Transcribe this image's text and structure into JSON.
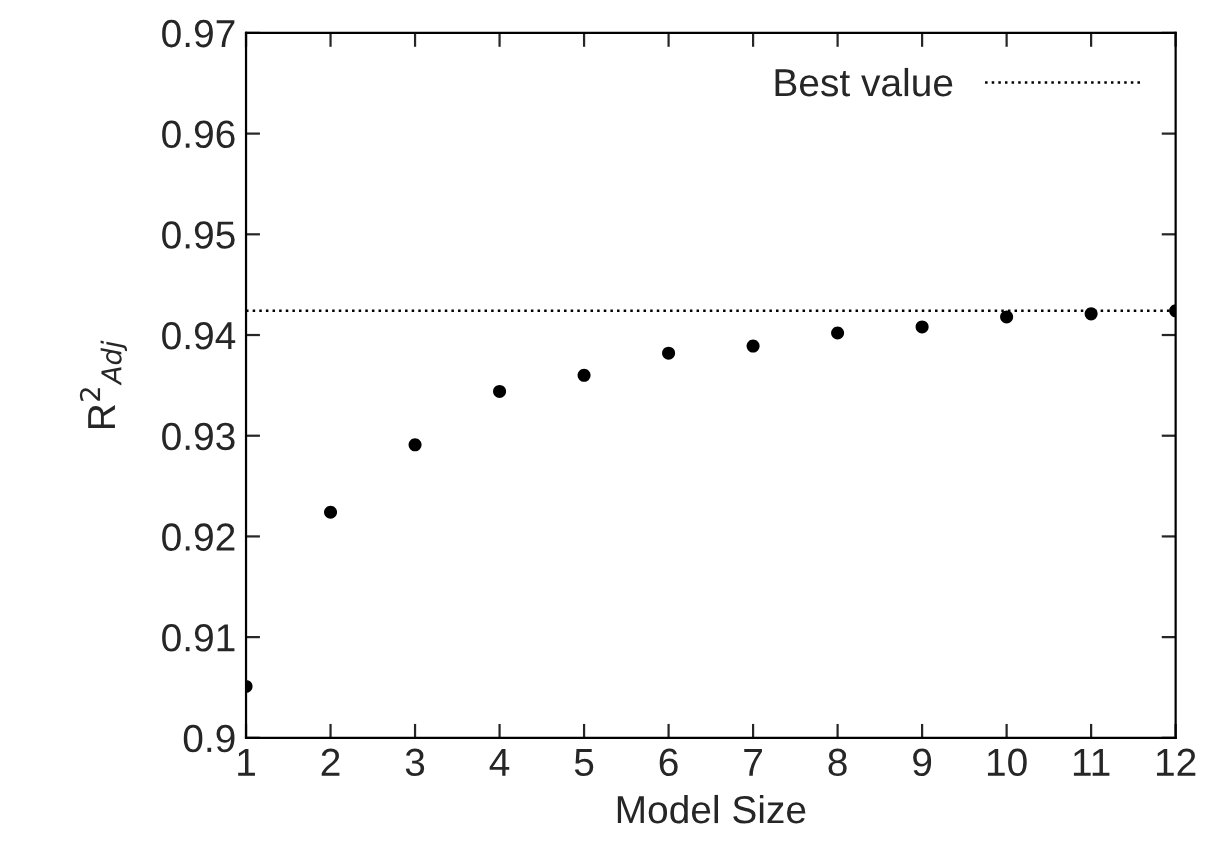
{
  "chart_data": {
    "type": "scatter",
    "xlabel": "Model Size",
    "ylabel": "R$^{2}$$_{Adj}$",
    "x": [
      1,
      2,
      3,
      4,
      5,
      6,
      7,
      8,
      9,
      10,
      11,
      12
    ],
    "series": [
      {
        "color": "#000000",
        "values": [
          0.9051,
          0.9224,
          0.9291,
          0.9344,
          0.936,
          0.9382,
          0.9389,
          0.9402,
          0.9408,
          0.9418,
          0.9421,
          0.9424
        ]
      }
    ],
    "marker": "circle",
    "xlim": [
      1,
      12
    ],
    "xticks": [
      1,
      2,
      3,
      4,
      5,
      6,
      7,
      8,
      9,
      10,
      11,
      12
    ],
    "ylim": [
      0.9,
      0.97
    ],
    "yticks": [
      0.9,
      0.91,
      0.92,
      0.93,
      0.94,
      0.95,
      0.96,
      0.97
    ],
    "ref_lines": [
      {
        "axis": "y",
        "value": 0.9424,
        "label": "Best value",
        "color": "#000000",
        "line_style": "dotted"
      }
    ],
    "legend": "top right",
    "grid": false
  }
}
